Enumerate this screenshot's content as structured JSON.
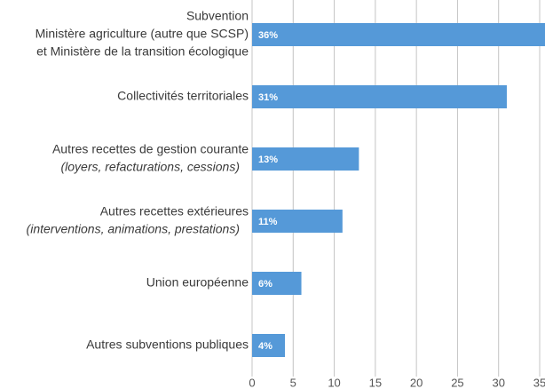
{
  "chart_data": {
    "type": "bar",
    "orientation": "horizontal",
    "categories": [
      [
        "Subvention",
        "Ministère agriculture (autre que SCSP)",
        "et Ministère de la transition écologique"
      ],
      [
        "Collectivités territoriales"
      ],
      [
        "Autres recettes de gestion courante"
      ],
      [
        "Autres recettes extérieures"
      ],
      [
        "Union européenne"
      ],
      [
        "Autres subventions publiques"
      ]
    ],
    "category_details": [
      null,
      null,
      "(loyers, refacturations, cessions)",
      "(interventions, animations, prestations)",
      null,
      null
    ],
    "values": [
      36,
      31,
      13,
      11,
      6,
      4
    ],
    "value_labels": [
      "36%",
      "31%",
      "13%",
      "11%",
      "6%",
      "4%"
    ],
    "color": "#5599d8",
    "xlim": [
      0,
      35
    ],
    "xticks": [
      0,
      5,
      10,
      15,
      20,
      25,
      30,
      35
    ],
    "grid": true
  }
}
